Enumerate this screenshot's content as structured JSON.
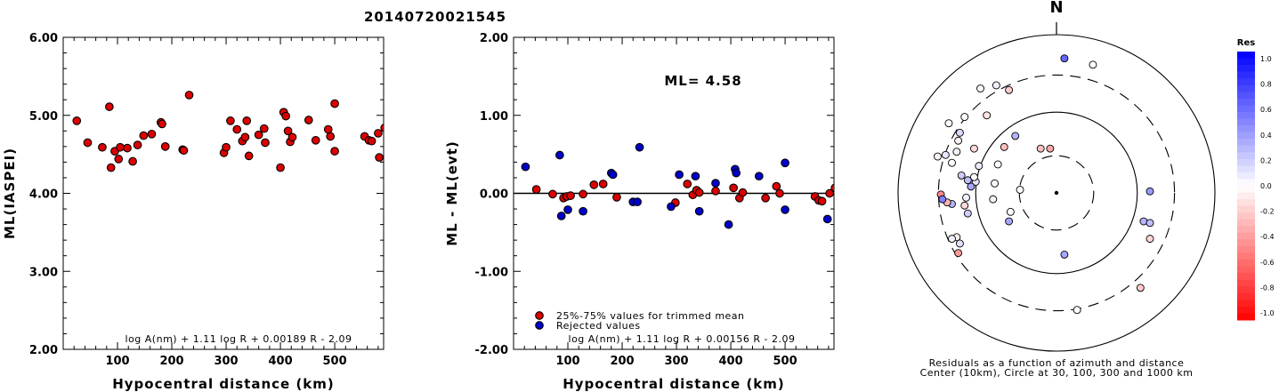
{
  "title": "20140720021545",
  "chart_data": [
    {
      "type": "scatter",
      "xlabel": "Hypocentral distance (km)",
      "ylabel": "ML(IASPEI)",
      "xlim": [
        0,
        590
      ],
      "ylim": [
        2.0,
        6.0
      ],
      "xticks": [
        "100",
        "200",
        "300",
        "400",
        "500"
      ],
      "xtick_values": [
        100,
        200,
        300,
        400,
        500
      ],
      "yticks": [
        "2.00",
        "3.00",
        "4.00",
        "5.00",
        "6.00"
      ],
      "ytick_values": [
        2,
        3,
        4,
        5,
        6
      ],
      "formula": "log A(nm) + 1.11 log R + 0.00189 R - 2.09",
      "series": [
        {
          "color": "#dd0000",
          "points": [
            [
              25,
              4.93
            ],
            [
              45,
              4.65
            ],
            [
              72,
              4.59
            ],
            [
              85,
              5.11
            ],
            [
              88,
              4.33
            ],
            [
              95,
              4.54
            ],
            [
              102,
              4.44
            ],
            [
              105,
              4.59
            ],
            [
              118,
              4.58
            ],
            [
              128,
              4.41
            ],
            [
              137,
              4.62
            ],
            [
              148,
              4.74
            ],
            [
              163,
              4.76
            ],
            [
              180,
              4.91
            ],
            [
              182,
              4.89
            ],
            [
              188,
              4.6
            ],
            [
              220,
              4.56
            ],
            [
              222,
              4.55
            ],
            [
              232,
              5.26
            ],
            [
              296,
              4.52
            ],
            [
              300,
              4.59
            ],
            [
              308,
              4.93
            ],
            [
              320,
              4.82
            ],
            [
              330,
              4.67
            ],
            [
              335,
              4.72
            ],
            [
              338,
              4.93
            ],
            [
              342,
              4.48
            ],
            [
              360,
              4.75
            ],
            [
              370,
              4.83
            ],
            [
              372,
              4.65
            ],
            [
              400,
              4.33
            ],
            [
              406,
              5.04
            ],
            [
              410,
              4.99
            ],
            [
              414,
              4.8
            ],
            [
              418,
              4.66
            ],
            [
              422,
              4.72
            ],
            [
              452,
              4.94
            ],
            [
              465,
              4.68
            ],
            [
              488,
              4.82
            ],
            [
              492,
              4.73
            ],
            [
              500,
              4.54
            ],
            [
              500,
              5.15
            ],
            [
              555,
              4.73
            ],
            [
              563,
              4.68
            ],
            [
              568,
              4.67
            ],
            [
              580,
              4.77
            ],
            [
              582,
              4.46
            ],
            [
              592,
              4.84
            ]
          ]
        }
      ]
    },
    {
      "type": "scatter",
      "xlabel": "Hypocentral distance (km)",
      "ylabel": "ML - ML(evt)",
      "xlim": [
        0,
        590
      ],
      "ylim": [
        -2.0,
        2.0
      ],
      "xticks": [
        "100",
        "200",
        "300",
        "400",
        "500"
      ],
      "xtick_values": [
        100,
        200,
        300,
        400,
        500
      ],
      "yticks": [
        "-2.00",
        "-1.00",
        "0.00",
        "1.00",
        "2.00"
      ],
      "ytick_values": [
        -2,
        -1,
        0,
        1,
        2
      ],
      "annotation": "ML= 4.58",
      "formula": "log A(nm) + 1.11 log R + 0.00156 R - 2.09",
      "series": [
        {
          "name": "25%-75% values for trimmed mean",
          "color": "#dd0000",
          "points": [
            [
              42,
              0.05
            ],
            [
              72,
              -0.01
            ],
            [
              92,
              -0.06
            ],
            [
              98,
              -0.04
            ],
            [
              105,
              -0.03
            ],
            [
              128,
              -0.01
            ],
            [
              148,
              0.11
            ],
            [
              165,
              0.12
            ],
            [
              190,
              -0.05
            ],
            [
              298,
              -0.12
            ],
            [
              320,
              0.12
            ],
            [
              330,
              -0.02
            ],
            [
              337,
              0.04
            ],
            [
              342,
              0.01
            ],
            [
              372,
              0.03
            ],
            [
              405,
              0.07
            ],
            [
              416,
              -0.06
            ],
            [
              422,
              0.01
            ],
            [
              464,
              -0.06
            ],
            [
              484,
              0.09
            ],
            [
              490,
              0.0
            ],
            [
              555,
              -0.04
            ],
            [
              562,
              -0.09
            ],
            [
              568,
              -0.1
            ],
            [
              582,
              0.0
            ],
            [
              592,
              0.07
            ]
          ]
        },
        {
          "name": "Rejected values",
          "color": "#0000cc",
          "points": [
            [
              22,
              0.34
            ],
            [
              85,
              0.49
            ],
            [
              88,
              -0.29
            ],
            [
              100,
              -0.21
            ],
            [
              128,
              -0.23
            ],
            [
              180,
              0.26
            ],
            [
              183,
              0.24
            ],
            [
              220,
              -0.11
            ],
            [
              228,
              -0.11
            ],
            [
              232,
              0.59
            ],
            [
              290,
              -0.17
            ],
            [
              305,
              0.24
            ],
            [
              335,
              0.22
            ],
            [
              342,
              -0.23
            ],
            [
              372,
              0.13
            ],
            [
              396,
              -0.4
            ],
            [
              408,
              0.31
            ],
            [
              410,
              0.26
            ],
            [
              452,
              0.22
            ],
            [
              500,
              0.39
            ],
            [
              500,
              -0.21
            ],
            [
              578,
              -0.33
            ]
          ]
        }
      ]
    },
    {
      "type": "scatter",
      "title": "N",
      "caption": [
        "Residuals as a function of azimuth and distance",
        "Center (10km), Circle at 30, 100, 300 and 1000 km"
      ],
      "circle_distances_km": [
        30,
        100,
        300,
        1000
      ],
      "colorbar": {
        "title": "Res",
        "range": [
          -1.0,
          1.0
        ],
        "labels": [
          "1.0",
          "0.8",
          "0.6",
          "0.4",
          "0.2",
          "0.0",
          "-0.2",
          "-0.4",
          "-0.6",
          "-0.8",
          "-1.0"
        ]
      },
      "stations": [
        [
          -0.48,
          -0.66,
          0.03
        ],
        [
          -0.38,
          -0.68,
          0.05
        ],
        [
          -0.44,
          -0.49,
          -0.1
        ],
        [
          -0.3,
          -0.65,
          -0.2
        ],
        [
          -0.58,
          -0.48,
          0.02
        ],
        [
          -0.68,
          -0.44,
          0.0
        ],
        [
          -0.61,
          -0.38,
          0.15
        ],
        [
          -0.62,
          -0.33,
          -0.05
        ],
        [
          -0.52,
          -0.28,
          -0.15
        ],
        [
          -0.33,
          -0.29,
          -0.25
        ],
        [
          -0.26,
          -0.36,
          0.3
        ],
        [
          -0.1,
          -0.28,
          -0.25
        ],
        [
          -0.04,
          -0.28,
          -0.35
        ],
        [
          -0.37,
          -0.18,
          0.0
        ],
        [
          -0.49,
          -0.17,
          0.08
        ],
        [
          -0.63,
          -0.26,
          0.05
        ],
        [
          -0.7,
          -0.24,
          0.1
        ],
        [
          -0.75,
          -0.23,
          -0.05
        ],
        [
          -0.66,
          -0.19,
          0.0
        ],
        [
          -0.51,
          -0.07,
          0.1
        ],
        [
          -0.52,
          -0.1,
          0.0
        ],
        [
          -0.39,
          -0.06,
          0.03
        ],
        [
          -0.6,
          -0.11,
          0.2
        ],
        [
          -0.56,
          -0.08,
          0.25
        ],
        [
          -0.54,
          -0.04,
          0.35
        ],
        [
          -0.57,
          0.03,
          0.05
        ],
        [
          -0.58,
          0.08,
          -0.15
        ],
        [
          -0.56,
          0.13,
          0.2
        ],
        [
          -0.66,
          0.07,
          0.3
        ],
        [
          -0.73,
          0.01,
          -0.45
        ],
        [
          -0.69,
          0.06,
          -0.3
        ],
        [
          -0.72,
          0.04,
          0.5
        ],
        [
          -0.63,
          0.28,
          -0.05
        ],
        [
          -0.66,
          0.29,
          0.05
        ],
        [
          -0.61,
          0.32,
          0.12
        ],
        [
          -0.62,
          0.38,
          -0.4
        ],
        [
          -0.29,
          0.12,
          -0.02
        ],
        [
          -0.4,
          0.04,
          0.04
        ],
        [
          -0.23,
          -0.02,
          0.02
        ],
        [
          -0.3,
          0.18,
          0.35
        ],
        [
          0.05,
          0.39,
          0.35
        ],
        [
          0.13,
          0.74,
          0.0
        ],
        [
          0.05,
          -0.85,
          0.6
        ],
        [
          0.23,
          -0.81,
          0.0
        ],
        [
          0.55,
          0.18,
          0.3
        ],
        [
          0.59,
          0.19,
          0.25
        ],
        [
          0.59,
          -0.01,
          0.4
        ],
        [
          0.59,
          0.29,
          -0.15
        ],
        [
          0.53,
          0.6,
          -0.2
        ]
      ]
    }
  ]
}
